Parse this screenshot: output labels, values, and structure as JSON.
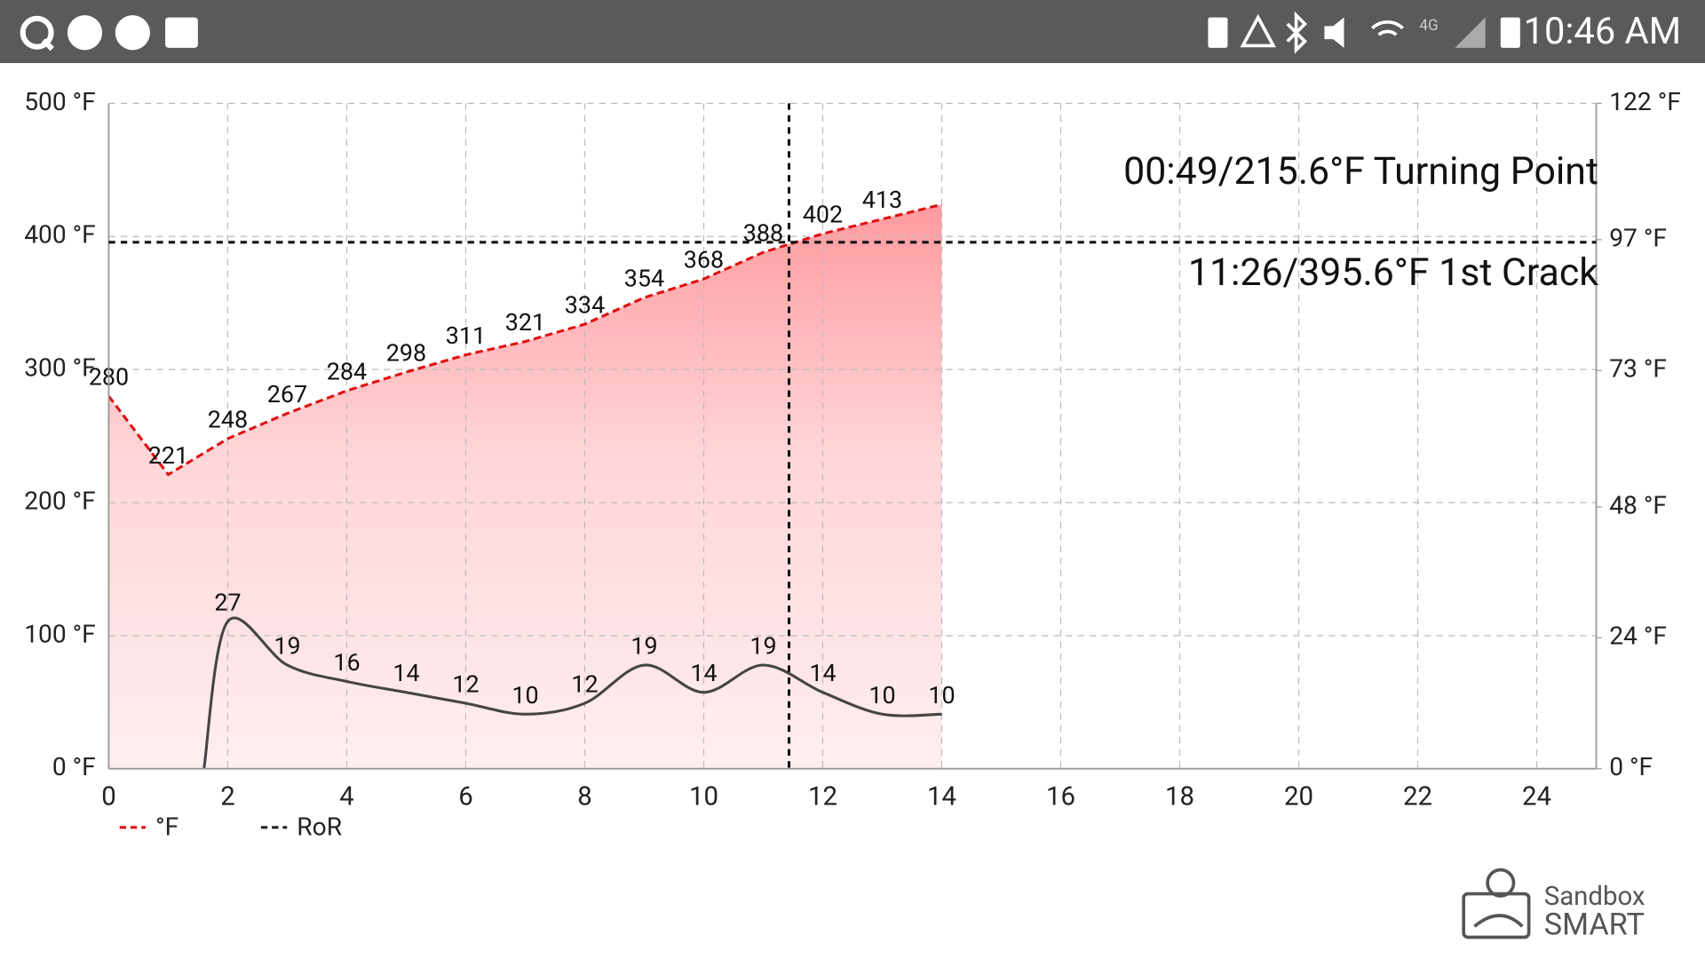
{
  "status_bar": {
    "network": "4G",
    "time": "10:46 AM"
  },
  "chart_data": {
    "type": "line",
    "annotations": [
      "00:49/215.6°F Turning Point",
      "11:26/395.6°F 1st Crack"
    ],
    "crosshair": {
      "x": 11.433,
      "y": 395.6
    },
    "xlim": [
      0,
      25
    ],
    "xticks": [
      0,
      2,
      4,
      6,
      8,
      10,
      12,
      14,
      16,
      18,
      20,
      22,
      24
    ],
    "ylim": [
      0,
      500
    ],
    "yticks": [
      {
        "value": 0,
        "label": "0 °F"
      },
      {
        "value": 100,
        "label": "100 °F"
      },
      {
        "value": 200,
        "label": "200 °F"
      },
      {
        "value": 300,
        "label": "300 °F"
      },
      {
        "value": 400,
        "label": "400 °F"
      },
      {
        "value": 500,
        "label": "500 °F"
      }
    ],
    "y2lim": [
      0,
      122
    ],
    "y2ticks": [
      {
        "value": 0,
        "label": "0 °F"
      },
      {
        "value": 24,
        "label": "24 °F"
      },
      {
        "value": 48,
        "label": "48 °F"
      },
      {
        "value": 73,
        "label": "73 °F"
      },
      {
        "value": 97,
        "label": "97 °F"
      },
      {
        "value": 122,
        "label": "122 °F"
      }
    ],
    "grid": true,
    "legend": "bottom-left",
    "series": [
      {
        "name": "°F",
        "color": "#e01010",
        "fill": true,
        "x": [
          0,
          1,
          2,
          3,
          4,
          5,
          6,
          7,
          8,
          9,
          10,
          11,
          12,
          13,
          14
        ],
        "values": [
          280,
          221,
          248,
          267,
          284,
          298,
          311,
          321,
          334,
          354,
          368,
          388,
          402,
          413,
          424
        ],
        "value_labels": [
          "280",
          "221",
          "248",
          "267",
          "284",
          "298",
          "311",
          "321",
          "334",
          "354",
          "368",
          "388",
          "402",
          "413",
          null
        ]
      },
      {
        "name": "RoR",
        "color": "#444444",
        "axis": "y2",
        "x": [
          1.6,
          2,
          3,
          4,
          5,
          6,
          7,
          8,
          9,
          10,
          11,
          12,
          13,
          14
        ],
        "values": [
          0,
          27,
          19,
          16,
          14,
          12,
          10,
          12,
          19,
          14,
          19,
          14,
          10,
          10
        ],
        "value_labels": [
          null,
          "27",
          "19",
          "16",
          "14",
          "12",
          "10",
          "12",
          "19",
          "14",
          "19",
          "14",
          "10",
          "10"
        ]
      }
    ]
  },
  "logo": {
    "line1": "Sandbox",
    "line2": "SMART"
  }
}
